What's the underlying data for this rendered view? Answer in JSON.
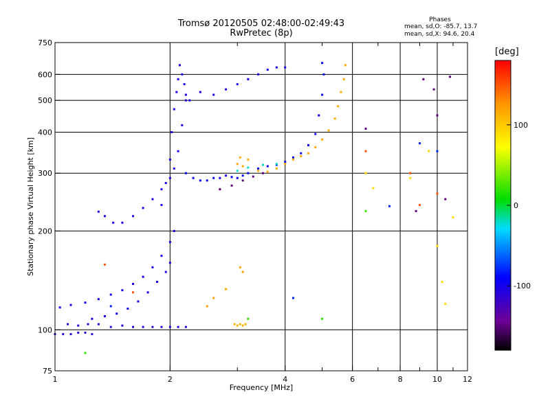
{
  "title": {
    "line1": "Tromsø 20120505 02:48:00-02:49:43",
    "line2": "RwPretec (8p)"
  },
  "phases": {
    "heading": "Phases",
    "o_stats": "mean, sd,O: -85.7, 13.7",
    "x_stats": "mean, sd,X:  94.6, 20.4"
  },
  "colorbar": {
    "unit": "[deg]",
    "range": [
      -180,
      180
    ],
    "ticks": [
      {
        "value": 100,
        "label": "100"
      },
      {
        "value": 0,
        "label": "0"
      },
      {
        "value": -100,
        "label": "-100"
      }
    ]
  },
  "chart_data": {
    "type": "scatter",
    "xlabel": "Frequency [MHz]",
    "ylabel": "Stationary phase Virtual Height [km]",
    "x_scale": "log",
    "y_scale": "log",
    "xlim": [
      1,
      12
    ],
    "ylim": [
      75,
      750
    ],
    "x_ticks": [
      {
        "value": 1,
        "label": "1"
      },
      {
        "value": 2,
        "label": "2"
      },
      {
        "value": 4,
        "label": "4"
      },
      {
        "value": 6,
        "label": "6"
      },
      {
        "value": 8,
        "label": "8"
      },
      {
        "value": 10,
        "label": "10"
      },
      {
        "value": 12,
        "label": "12"
      }
    ],
    "y_ticks": [
      {
        "value": 75,
        "label": "75"
      },
      {
        "value": 100,
        "label": "100"
      },
      {
        "value": 200,
        "label": "200"
      },
      {
        "value": 300,
        "label": "300"
      },
      {
        "value": 400,
        "label": "400"
      },
      {
        "value": 500,
        "label": "500"
      },
      {
        "value": 600,
        "label": "600"
      },
      {
        "value": 750,
        "label": "750"
      }
    ],
    "grid_x": [
      2,
      4,
      6,
      8,
      10
    ],
    "grid_y": [
      100,
      200,
      300,
      400,
      500,
      600
    ],
    "grid": true,
    "series": [
      {
        "phase": -110,
        "points": [
          [
            1.0,
            97
          ],
          [
            1.05,
            97
          ],
          [
            1.1,
            97
          ],
          [
            1.15,
            98
          ],
          [
            1.2,
            98
          ],
          [
            1.25,
            97
          ]
        ]
      },
      {
        "phase": -110,
        "points": [
          [
            1.08,
            104
          ],
          [
            1.15,
            103
          ],
          [
            1.22,
            104
          ],
          [
            1.3,
            104
          ],
          [
            1.4,
            102
          ],
          [
            1.5,
            103
          ],
          [
            1.6,
            102
          ],
          [
            1.7,
            102
          ],
          [
            1.8,
            102
          ],
          [
            1.9,
            102
          ],
          [
            2.0,
            102
          ],
          [
            2.1,
            102
          ],
          [
            2.2,
            102
          ]
        ]
      },
      {
        "phase": -100,
        "points": [
          [
            1.03,
            117
          ],
          [
            1.1,
            119
          ],
          [
            1.2,
            121
          ],
          [
            1.3,
            124
          ],
          [
            1.4,
            128
          ],
          [
            1.5,
            132
          ],
          [
            1.6,
            138
          ],
          [
            1.7,
            145
          ],
          [
            1.8,
            155
          ],
          [
            1.9,
            168
          ],
          [
            2.0,
            185
          ],
          [
            2.05,
            200
          ]
        ]
      },
      {
        "phase": -100,
        "points": [
          [
            1.25,
            108
          ],
          [
            1.35,
            110
          ],
          [
            1.45,
            112
          ],
          [
            1.55,
            116
          ],
          [
            1.65,
            122
          ],
          [
            1.75,
            130
          ],
          [
            1.85,
            140
          ],
          [
            1.95,
            150
          ],
          [
            2.0,
            160
          ]
        ]
      },
      {
        "phase": -105,
        "points": [
          [
            1.3,
            229
          ],
          [
            1.35,
            222
          ],
          [
            1.42,
            212
          ],
          [
            1.5,
            212
          ],
          [
            1.6,
            222
          ],
          [
            1.7,
            235
          ],
          [
            1.8,
            250
          ],
          [
            1.9,
            268
          ],
          [
            2.0,
            290
          ],
          [
            2.05,
            310
          ],
          [
            2.1,
            350
          ],
          [
            2.15,
            420
          ],
          [
            2.2,
            500
          ]
        ]
      },
      {
        "phase": -100,
        "points": [
          [
            1.9,
            240
          ],
          [
            1.95,
            280
          ],
          [
            2.0,
            330
          ],
          [
            2.02,
            400
          ],
          [
            2.05,
            470
          ],
          [
            2.08,
            530
          ],
          [
            2.1,
            580
          ],
          [
            2.12,
            640
          ],
          [
            2.15,
            600
          ],
          [
            2.18,
            560
          ],
          [
            2.2,
            520
          ],
          [
            2.25,
            500
          ]
        ]
      },
      {
        "phase": -95,
        "points": [
          [
            2.2,
            300
          ],
          [
            2.3,
            290
          ],
          [
            2.4,
            285
          ],
          [
            2.5,
            285
          ],
          [
            2.6,
            290
          ],
          [
            2.7,
            290
          ],
          [
            2.8,
            295
          ],
          [
            2.9,
            292
          ],
          [
            3.0,
            290
          ],
          [
            3.1,
            295
          ],
          [
            3.2,
            300
          ],
          [
            3.4,
            310
          ],
          [
            3.6,
            315
          ],
          [
            3.8,
            318
          ],
          [
            4.0,
            325
          ],
          [
            4.2,
            335
          ],
          [
            4.4,
            345
          ],
          [
            4.6,
            365
          ],
          [
            4.8,
            395
          ],
          [
            4.9,
            450
          ],
          [
            5.0,
            520
          ],
          [
            5.05,
            600
          ],
          [
            5.0,
            650
          ]
        ]
      },
      {
        "phase": -100,
        "points": [
          [
            2.4,
            530
          ],
          [
            2.6,
            520
          ],
          [
            2.8,
            540
          ],
          [
            3.0,
            560
          ],
          [
            3.2,
            580
          ],
          [
            3.4,
            600
          ],
          [
            3.6,
            620
          ],
          [
            3.8,
            630
          ],
          [
            4.0,
            630
          ]
        ]
      },
      {
        "phase": -150,
        "points": [
          [
            2.7,
            268
          ],
          [
            2.9,
            275
          ],
          [
            3.1,
            285
          ],
          [
            3.3,
            293
          ],
          [
            3.5,
            300
          ]
        ]
      },
      {
        "phase": 115,
        "points": [
          [
            3.0,
            320
          ],
          [
            3.05,
            335
          ],
          [
            3.1,
            315
          ],
          [
            3.2,
            330
          ],
          [
            3.4,
            305
          ],
          [
            3.6,
            303
          ],
          [
            3.8,
            310
          ],
          [
            4.0,
            320
          ],
          [
            4.2,
            330
          ],
          [
            4.4,
            338
          ],
          [
            4.6,
            345
          ],
          [
            4.8,
            360
          ],
          [
            5.0,
            380
          ],
          [
            5.2,
            405
          ],
          [
            5.4,
            440
          ],
          [
            5.5,
            480
          ],
          [
            5.6,
            530
          ],
          [
            5.7,
            580
          ],
          [
            5.75,
            640
          ]
        ]
      },
      {
        "phase": 110,
        "points": [
          [
            2.95,
            104
          ],
          [
            3.0,
            103
          ],
          [
            3.05,
            104
          ],
          [
            3.1,
            103
          ],
          [
            3.15,
            104
          ]
        ]
      },
      {
        "phase": 120,
        "points": [
          [
            2.5,
            118
          ],
          [
            2.6,
            125
          ],
          [
            2.8,
            133
          ],
          [
            3.05,
            155
          ],
          [
            3.1,
            150
          ]
        ]
      },
      {
        "phase": -20,
        "points": [
          [
            3.0,
            305
          ],
          [
            3.2,
            312
          ],
          [
            3.5,
            318
          ],
          [
            3.8,
            320
          ]
        ]
      },
      {
        "phase": 150,
        "points": [
          [
            1.35,
            158
          ],
          [
            6.5,
            350
          ],
          [
            8.5,
            300
          ],
          [
            9.0,
            240
          ],
          [
            10.0,
            260
          ],
          [
            1.6,
            130
          ]
        ]
      },
      {
        "phase": 90,
        "points": [
          [
            6.5,
            300
          ],
          [
            6.8,
            270
          ],
          [
            8.5,
            290
          ],
          [
            9.5,
            350
          ],
          [
            10.0,
            180
          ],
          [
            10.3,
            140
          ],
          [
            10.5,
            120
          ],
          [
            11.0,
            220
          ]
        ]
      },
      {
        "phase": -150,
        "points": [
          [
            6.5,
            410
          ],
          [
            8.8,
            230
          ],
          [
            10.0,
            450
          ],
          [
            10.5,
            250
          ],
          [
            10.8,
            590
          ],
          [
            9.8,
            540
          ],
          [
            9.2,
            580
          ]
        ]
      },
      {
        "phase": 20,
        "points": [
          [
            6.5,
            230
          ],
          [
            5.0,
            108
          ],
          [
            1.2,
            85
          ],
          [
            3.2,
            108
          ]
        ]
      },
      {
        "phase": -80,
        "points": [
          [
            7.5,
            238
          ],
          [
            9.0,
            370
          ],
          [
            10.0,
            350
          ],
          [
            4.2,
            125
          ],
          [
            1.4,
            118
          ]
        ]
      }
    ]
  }
}
